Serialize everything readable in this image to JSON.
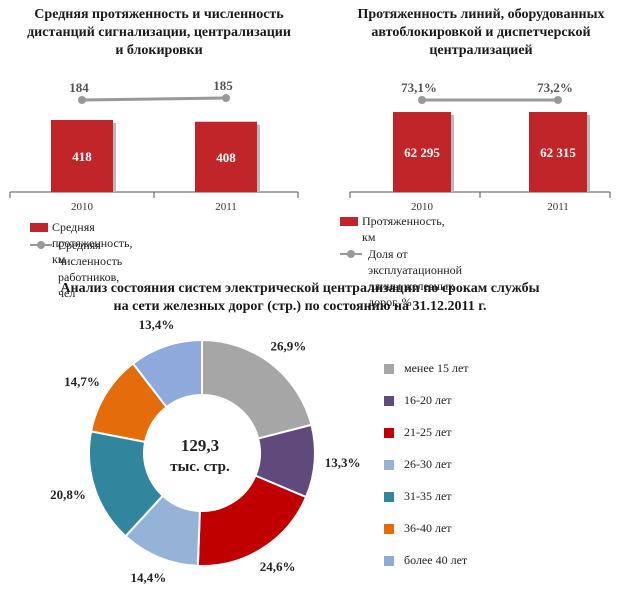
{
  "left_panel": {
    "title_lines": [
      "Средняя протяженность и численность",
      "дистанций сигнализации, централизации",
      "и блокировки"
    ],
    "legend": [
      "Средняя протяженность, км",
      "Средняя численность работников, чел"
    ]
  },
  "right_panel": {
    "title_lines": [
      "Протяженность линий, оборудованных",
      "автоблокировкой и диспетчерской",
      "централизацией"
    ],
    "legend": [
      "Протяженность, км",
      "Доля от эксплуатационной длины железных",
      "дорог, %"
    ]
  },
  "bottom_panel": {
    "title_lines": [
      "Анализ состояния систем электрической централизации по срокам службы",
      "на сети железных дорог (стр.) по состоянию на 31.12.2011 г."
    ],
    "center_label": [
      "129,3",
      "тыс. стр."
    ]
  },
  "colors": {
    "bar": "#c0252a",
    "line": "#999999",
    "slices": [
      "#a6a6a6",
      "#604a7b",
      "#c00000",
      "#95b3d7",
      "#31859c",
      "#e46c0a",
      "#8ea9db"
    ]
  },
  "chart_data": [
    {
      "type": "bar",
      "categories": [
        "2010",
        "2011"
      ],
      "series": [
        {
          "name": "Средняя протяженность, км",
          "values": [
            418,
            408
          ],
          "value_labels": [
            "418",
            "408"
          ]
        },
        {
          "name": "Средняя численность работников, чел",
          "type": "line",
          "values": [
            184,
            185
          ],
          "value_labels": [
            "184",
            "185"
          ]
        }
      ]
    },
    {
      "type": "bar",
      "categories": [
        "2010",
        "2011"
      ],
      "series": [
        {
          "name": "Протяженность, км",
          "values": [
            62295,
            62315
          ],
          "value_labels": [
            "62 295",
            "62 315"
          ]
        },
        {
          "name": "Доля от эксплуатационной длины железных дорог, %",
          "type": "line",
          "values": [
            73.1,
            73.2
          ],
          "value_labels": [
            "73,1%",
            "73,2%"
          ]
        }
      ]
    },
    {
      "type": "pie",
      "categories": [
        "менее 15 лет",
        "16-20 лет",
        "21-25 лет",
        "26-30 лет",
        "31-35 лет",
        "36-40 лет",
        "более 40 лет"
      ],
      "values": [
        26.9,
        13.3,
        24.6,
        14.4,
        20.8,
        14.7,
        13.4
      ],
      "value_labels": [
        "26,9%",
        "13,3%",
        "24,6%",
        "14,4%",
        "20,8%",
        "14,7%",
        "13,4%"
      ]
    }
  ]
}
